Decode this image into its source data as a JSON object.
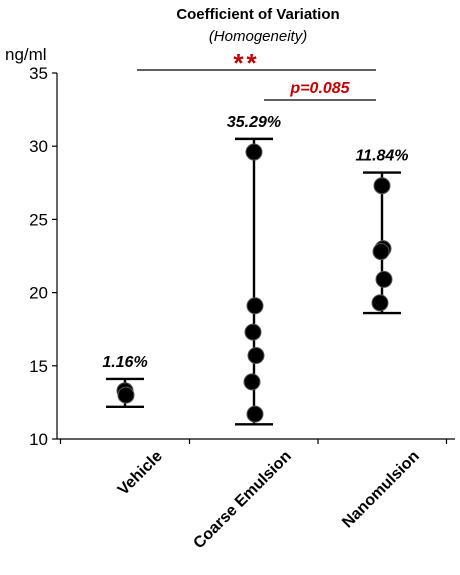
{
  "chart_data": {
    "type": "scatter",
    "title": "Coefficient of Variation",
    "subtitle": "(Homogeneity)",
    "ylabel": "ng/ml",
    "ylim": [
      10,
      35
    ],
    "yticks": [
      "10",
      "15",
      "20",
      "25",
      "30",
      "35"
    ],
    "grid": false,
    "categories": [
      "Vehicle",
      "Coarse Emulsion",
      "Nanomulsion"
    ],
    "groups": [
      {
        "category": "Vehicle",
        "cv_label": "1.16%",
        "points": [
          13.3,
          13.0
        ],
        "range": [
          12.2,
          14.1
        ]
      },
      {
        "category": "Coarse Emulsion",
        "cv_label": "35.29%",
        "points": [
          29.6,
          19.1,
          17.3,
          15.7,
          13.9,
          11.7
        ],
        "range": [
          11.0,
          30.5
        ]
      },
      {
        "category": "Nanomulsion",
        "cv_label": "11.84%",
        "points": [
          27.3,
          23.0,
          22.8,
          20.9,
          19.3
        ],
        "range": [
          18.6,
          28.2
        ]
      }
    ],
    "significance": [
      {
        "from": "Vehicle",
        "to": "Nanomulsion",
        "label": "**"
      },
      {
        "from": "Coarse Emulsion",
        "to": "Nanomulsion",
        "label": "p=0.085"
      }
    ]
  }
}
